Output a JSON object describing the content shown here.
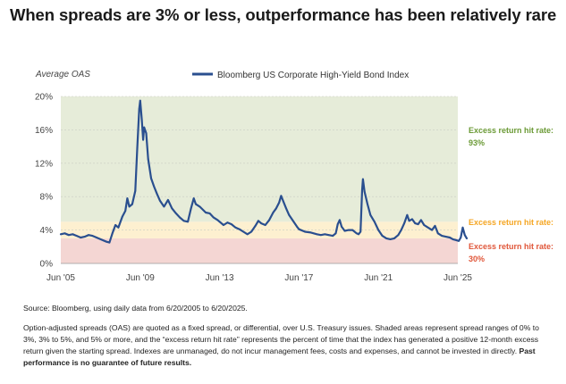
{
  "headline": "When spreads are 3% or less, outperformance has been relatively rare",
  "chart_data": {
    "type": "line",
    "title": "",
    "ylabel": "Average OAS",
    "xlabel": "",
    "ylim": [
      0,
      20
    ],
    "yticks": [
      "0%",
      "4%",
      "8%",
      "12%",
      "16%",
      "20%"
    ],
    "xlim": [
      2005.0,
      2025.0
    ],
    "xticks": [
      {
        "label": "Jun '05",
        "x": 2005.0
      },
      {
        "label": "Jun '09",
        "x": 2009.0
      },
      {
        "label": "Jun '13",
        "x": 2013.0
      },
      {
        "label": "Jun '17",
        "x": 2017.0
      },
      {
        "label": "Jun '21",
        "x": 2021.0
      },
      {
        "label": "Jun '25",
        "x": 2025.0
      }
    ],
    "legend": {
      "position": "top",
      "label": "Bloomberg US Corporate High-Yield Bond Index"
    },
    "bands": [
      {
        "from": 0,
        "to": 3,
        "color": "#f4d6d3",
        "label": "Excess return hit rate:",
        "value": "30%",
        "label_color": "#e0573a"
      },
      {
        "from": 3,
        "to": 5,
        "color": "#fdf0d0",
        "label": "Excess return hit rate:",
        "value": "",
        "label_color": "#f5a623"
      },
      {
        "from": 5,
        "to": 20,
        "color": "#e6ecd9",
        "label": "Excess return hit rate:",
        "value": "93%",
        "label_color": "#6b9a36"
      }
    ],
    "series": [
      {
        "name": "Bloomberg US Corporate High-Yield Bond Index",
        "color": "#2a4f8f",
        "points": [
          [
            2005.0,
            3.5
          ],
          [
            2005.2,
            3.6
          ],
          [
            2005.4,
            3.4
          ],
          [
            2005.6,
            3.5
          ],
          [
            2005.8,
            3.3
          ],
          [
            2006.0,
            3.1
          ],
          [
            2006.2,
            3.2
          ],
          [
            2006.4,
            3.4
          ],
          [
            2006.6,
            3.3
          ],
          [
            2006.8,
            3.1
          ],
          [
            2007.0,
            2.9
          ],
          [
            2007.3,
            2.6
          ],
          [
            2007.45,
            2.5
          ],
          [
            2007.6,
            3.6
          ],
          [
            2007.75,
            4.6
          ],
          [
            2007.9,
            4.3
          ],
          [
            2008.1,
            5.6
          ],
          [
            2008.25,
            6.3
          ],
          [
            2008.35,
            7.8
          ],
          [
            2008.45,
            6.8
          ],
          [
            2008.6,
            7.1
          ],
          [
            2008.75,
            8.7
          ],
          [
            2008.85,
            13.8
          ],
          [
            2008.95,
            18.5
          ],
          [
            2009.0,
            19.5
          ],
          [
            2009.08,
            17.2
          ],
          [
            2009.15,
            14.8
          ],
          [
            2009.2,
            16.3
          ],
          [
            2009.3,
            15.6
          ],
          [
            2009.4,
            12.5
          ],
          [
            2009.55,
            10.2
          ],
          [
            2009.7,
            9.2
          ],
          [
            2009.85,
            8.3
          ],
          [
            2010.0,
            7.5
          ],
          [
            2010.2,
            6.8
          ],
          [
            2010.4,
            7.6
          ],
          [
            2010.6,
            6.6
          ],
          [
            2010.8,
            6.0
          ],
          [
            2011.0,
            5.5
          ],
          [
            2011.2,
            5.1
          ],
          [
            2011.4,
            5.0
          ],
          [
            2011.55,
            6.5
          ],
          [
            2011.7,
            7.8
          ],
          [
            2011.8,
            7.1
          ],
          [
            2012.0,
            6.8
          ],
          [
            2012.3,
            6.1
          ],
          [
            2012.5,
            6.0
          ],
          [
            2012.7,
            5.5
          ],
          [
            2012.9,
            5.2
          ],
          [
            2013.0,
            5.0
          ],
          [
            2013.2,
            4.6
          ],
          [
            2013.4,
            4.9
          ],
          [
            2013.6,
            4.7
          ],
          [
            2013.8,
            4.3
          ],
          [
            2014.0,
            4.1
          ],
          [
            2014.2,
            3.8
          ],
          [
            2014.4,
            3.5
          ],
          [
            2014.6,
            3.8
          ],
          [
            2014.8,
            4.5
          ],
          [
            2014.95,
            5.1
          ],
          [
            2015.1,
            4.8
          ],
          [
            2015.3,
            4.6
          ],
          [
            2015.5,
            5.2
          ],
          [
            2015.7,
            6.1
          ],
          [
            2015.85,
            6.6
          ],
          [
            2016.0,
            7.3
          ],
          [
            2016.1,
            8.1
          ],
          [
            2016.2,
            7.5
          ],
          [
            2016.35,
            6.6
          ],
          [
            2016.5,
            5.8
          ],
          [
            2016.7,
            5.1
          ],
          [
            2016.9,
            4.4
          ],
          [
            2017.0,
            4.1
          ],
          [
            2017.3,
            3.8
          ],
          [
            2017.6,
            3.7
          ],
          [
            2017.9,
            3.5
          ],
          [
            2018.1,
            3.4
          ],
          [
            2018.3,
            3.5
          ],
          [
            2018.5,
            3.4
          ],
          [
            2018.7,
            3.3
          ],
          [
            2018.85,
            3.6
          ],
          [
            2018.95,
            4.7
          ],
          [
            2019.05,
            5.2
          ],
          [
            2019.15,
            4.4
          ],
          [
            2019.3,
            3.9
          ],
          [
            2019.5,
            4.0
          ],
          [
            2019.7,
            4.0
          ],
          [
            2019.9,
            3.6
          ],
          [
            2020.0,
            3.5
          ],
          [
            2020.1,
            3.8
          ],
          [
            2020.18,
            8.8
          ],
          [
            2020.22,
            10.1
          ],
          [
            2020.3,
            8.6
          ],
          [
            2020.45,
            7.1
          ],
          [
            2020.6,
            5.8
          ],
          [
            2020.8,
            5.0
          ],
          [
            2021.0,
            4.0
          ],
          [
            2021.2,
            3.3
          ],
          [
            2021.4,
            3.0
          ],
          [
            2021.6,
            2.9
          ],
          [
            2021.8,
            3.0
          ],
          [
            2022.0,
            3.4
          ],
          [
            2022.15,
            4.0
          ],
          [
            2022.3,
            4.8
          ],
          [
            2022.45,
            5.8
          ],
          [
            2022.55,
            5.1
          ],
          [
            2022.7,
            5.3
          ],
          [
            2022.85,
            4.8
          ],
          [
            2023.0,
            4.7
          ],
          [
            2023.15,
            5.2
          ],
          [
            2023.3,
            4.6
          ],
          [
            2023.5,
            4.3
          ],
          [
            2023.7,
            4.0
          ],
          [
            2023.85,
            4.5
          ],
          [
            2024.0,
            3.6
          ],
          [
            2024.2,
            3.3
          ],
          [
            2024.4,
            3.2
          ],
          [
            2024.6,
            3.1
          ],
          [
            2024.75,
            2.9
          ],
          [
            2024.9,
            2.8
          ],
          [
            2025.05,
            2.7
          ],
          [
            2025.15,
            3.1
          ],
          [
            2025.25,
            4.3
          ],
          [
            2025.35,
            3.4
          ],
          [
            2025.45,
            3.0
          ]
        ]
      }
    ]
  },
  "source": "Source: Bloomberg, using daily data from 6/20/2005 to 6/20/2025.",
  "footnote": {
    "text": "Option-adjusted spreads (OAS) are quoted as a fixed spread, or differential, over U.S. Treasury issues. Shaded areas represent spread ranges of 0% to 3%, 3% to 5%, and 5% or more, and the “excess return hit rate” represents the percent of time that the index has generated a positive 12-month excess return given the starting spread. Indexes are unmanaged, do not incur management fees, costs and expenses, and cannot be invested in directly.",
    "bold": "Past performance is no guarantee of future results."
  }
}
